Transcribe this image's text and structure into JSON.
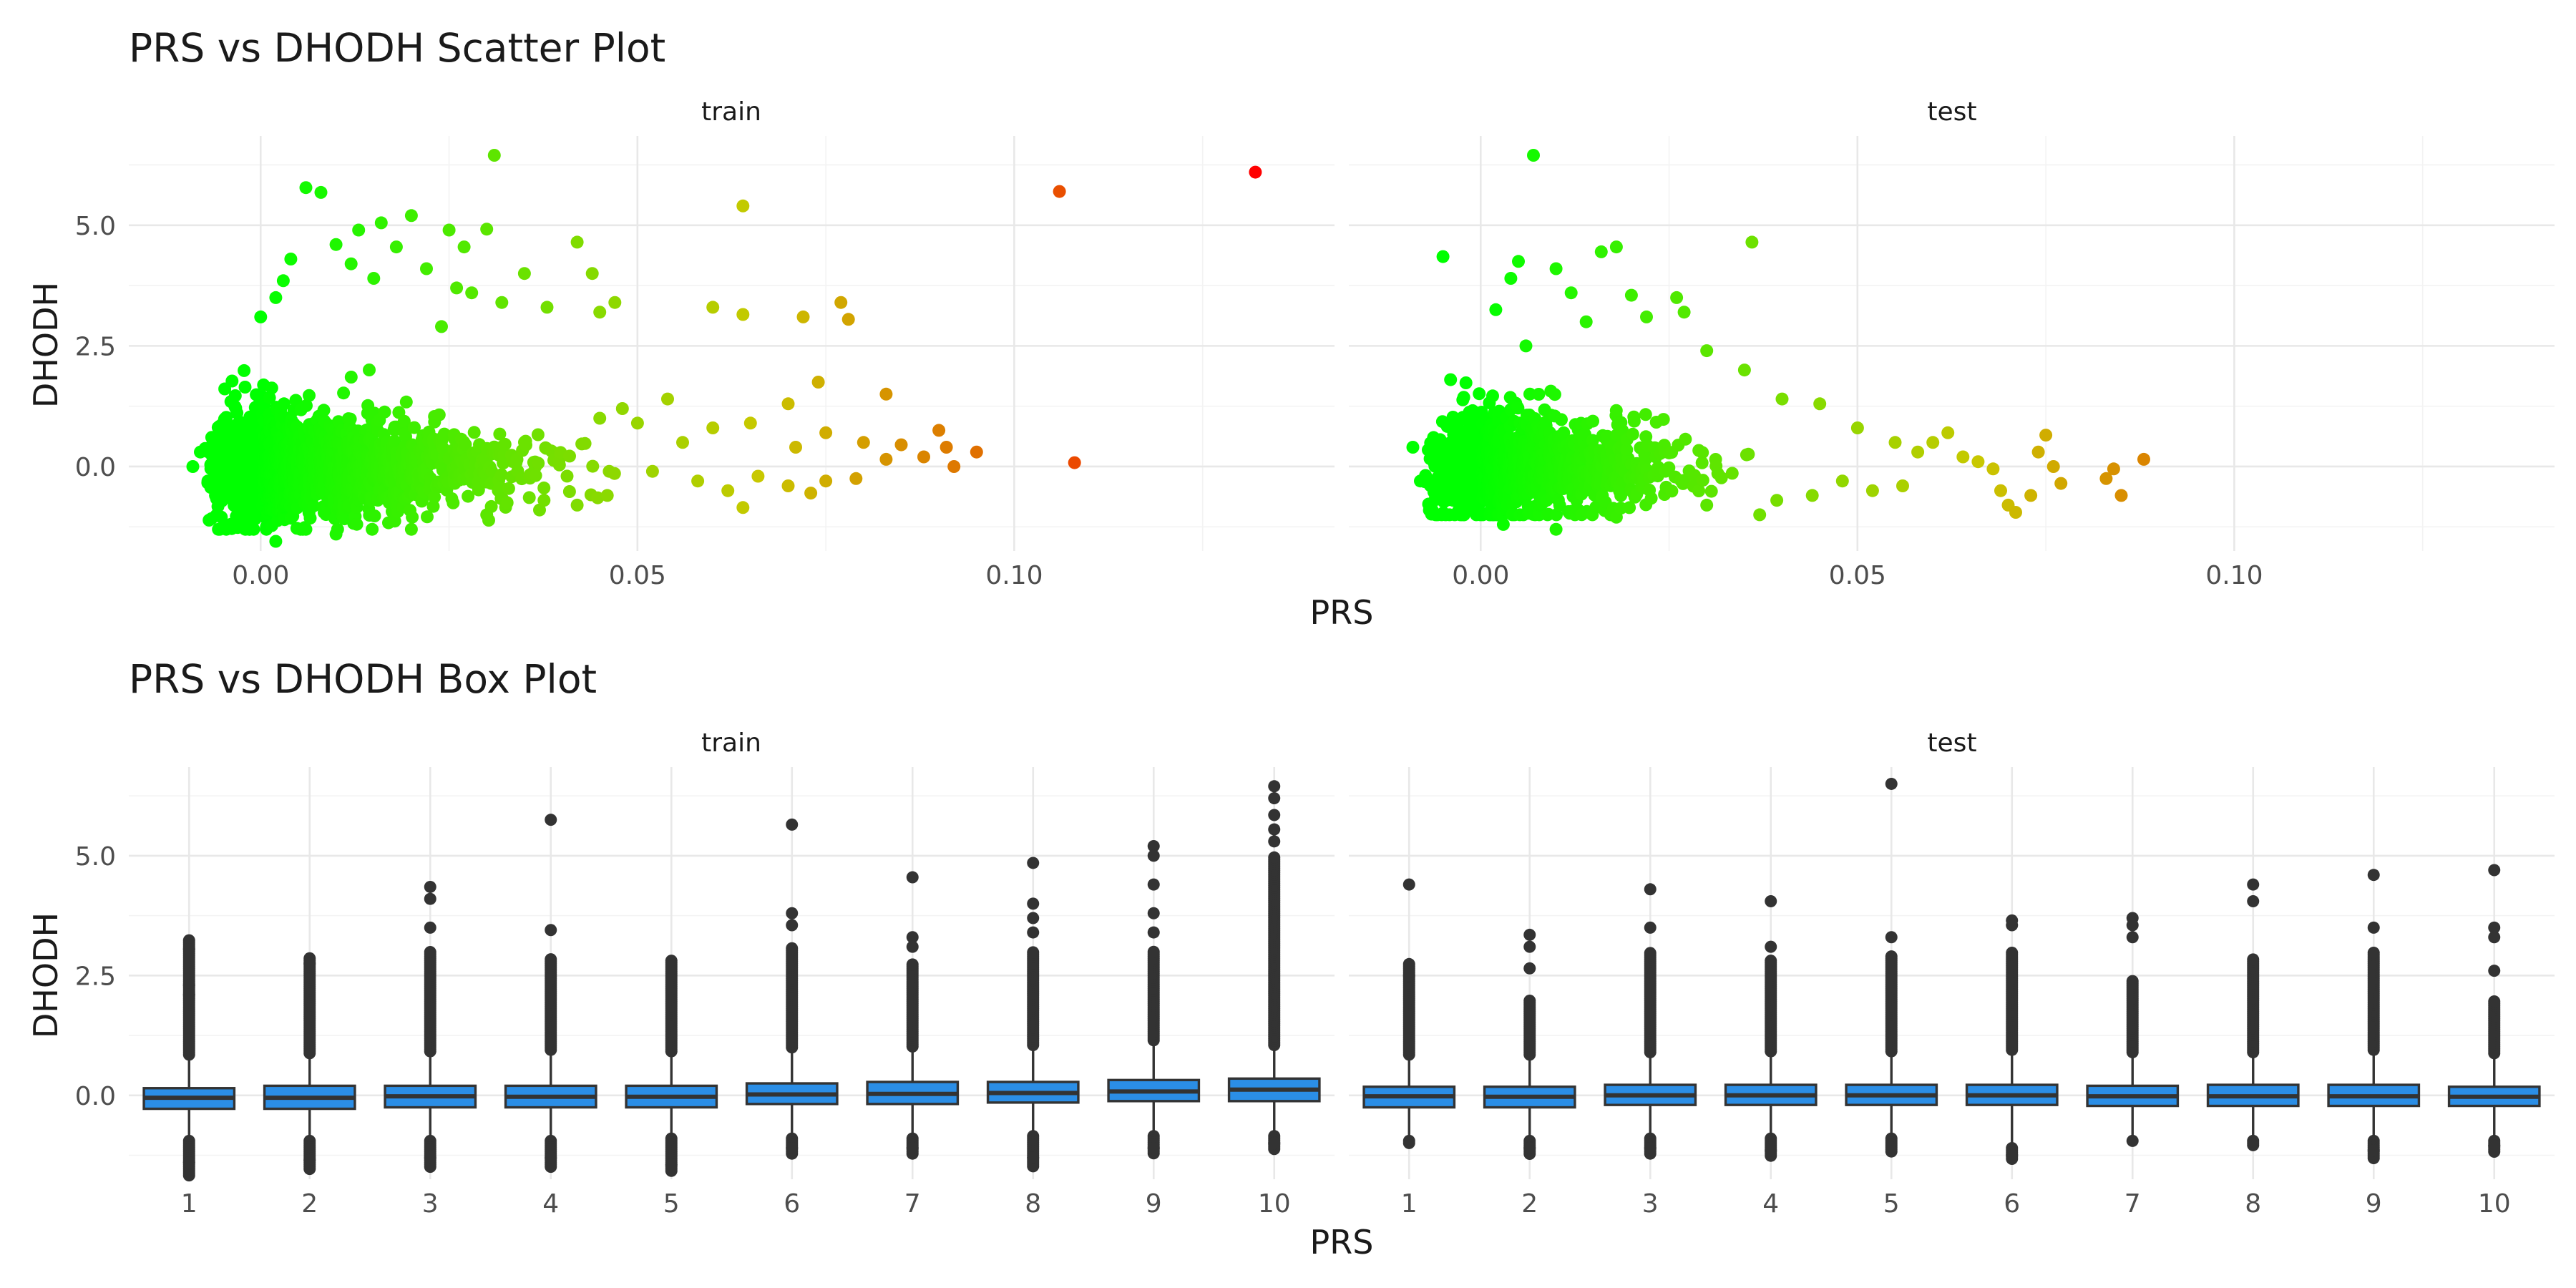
{
  "chart_data": [
    {
      "type": "scatter",
      "title": "PRS vs DHODH Scatter Plot",
      "xlabel": "PRS",
      "ylabel": "DHODH",
      "facets": [
        "train",
        "test"
      ],
      "xlim": [
        -0.0175,
        0.1425
      ],
      "ylim": [
        -1.75,
        6.85
      ],
      "x_ticks": [
        0.0,
        0.05,
        0.1
      ],
      "x_tick_labels": [
        "0.00",
        "0.05",
        "0.10"
      ],
      "y_ticks": [
        0.0,
        2.5,
        5.0
      ],
      "y_tick_labels": [
        "0.0",
        "2.5",
        "5.0"
      ],
      "color_scale": {
        "low": "#00ff00",
        "mid": "#c8c800",
        "high": "#ff0000",
        "domain": [
          0.0,
          0.132
        ]
      },
      "grid": true,
      "series": [
        {
          "points": [
            [
              0.031,
              6.45
            ],
            [
              0.006,
              5.78
            ],
            [
              0.008,
              5.68
            ],
            [
              0.02,
              5.2
            ],
            [
              0.016,
              5.05
            ],
            [
              0.013,
              4.9
            ],
            [
              0.025,
              4.9
            ],
            [
              0.03,
              4.92
            ],
            [
              0.042,
              4.65
            ],
            [
              0.01,
              4.6
            ],
            [
              0.018,
              4.55
            ],
            [
              0.027,
              4.55
            ],
            [
              0.004,
              4.3
            ],
            [
              0.012,
              4.2
            ],
            [
              0.022,
              4.1
            ],
            [
              0.035,
              4.0
            ],
            [
              0.044,
              4.0
            ],
            [
              0.003,
              3.85
            ],
            [
              0.015,
              3.9
            ],
            [
              0.028,
              3.6
            ],
            [
              0.032,
              3.4
            ],
            [
              0.038,
              3.3
            ],
            [
              0.045,
              3.2
            ],
            [
              0.047,
              3.4
            ],
            [
              0.064,
              5.4
            ],
            [
              0.106,
              5.7
            ],
            [
              0.132,
              6.1
            ],
            [
              0.06,
              3.3
            ],
            [
              0.064,
              3.15
            ],
            [
              0.072,
              3.1
            ],
            [
              0.077,
              3.4
            ],
            [
              0.078,
              3.05
            ],
            [
              0.074,
              1.75
            ],
            [
              0.083,
              1.5
            ],
            [
              0.07,
              1.3
            ],
            [
              0.054,
              1.4
            ],
            [
              0.048,
              1.2
            ],
            [
              0.045,
              1.0
            ],
            [
              0.05,
              0.9
            ],
            [
              0.056,
              0.5
            ],
            [
              0.06,
              0.8
            ],
            [
              0.065,
              0.9
            ],
            [
              0.071,
              0.4
            ],
            [
              0.075,
              0.7
            ],
            [
              0.08,
              0.5
            ],
            [
              0.085,
              0.45
            ],
            [
              0.09,
              0.75
            ],
            [
              0.095,
              0.3
            ],
            [
              0.088,
              0.2
            ],
            [
              0.091,
              0.4
            ],
            [
              0.092,
              0.0
            ],
            [
              0.108,
              0.08
            ],
            [
              0.052,
              -0.1
            ],
            [
              0.058,
              -0.3
            ],
            [
              0.062,
              -0.5
            ],
            [
              0.066,
              -0.2
            ],
            [
              0.07,
              -0.4
            ],
            [
              0.075,
              -0.3
            ],
            [
              0.079,
              -0.25
            ],
            [
              0.083,
              0.15
            ],
            [
              0.073,
              -0.55
            ],
            [
              0.064,
              -0.85
            ],
            [
              0.046,
              -0.6
            ],
            [
              0.042,
              -0.8
            ],
            [
              0.037,
              -0.9
            ],
            [
              0.03,
              -1.0
            ],
            [
              0.02,
              -1.3
            ],
            [
              0.01,
              -1.4
            ],
            [
              0.002,
              -1.55
            ],
            [
              0.006,
              -1.3
            ],
            [
              -0.004,
              -1.2
            ],
            [
              -0.006,
              -0.6
            ],
            [
              -0.009,
              0.0
            ],
            [
              -0.008,
              0.3
            ],
            [
              -0.007,
              -0.3
            ],
            [
              0.0,
              3.1
            ],
            [
              0.002,
              3.5
            ],
            [
              0.026,
              3.7
            ],
            [
              0.024,
              2.9
            ]
          ],
          "bulk_range": {
            "x": [
              -0.008,
              0.05
            ],
            "y": [
              -1.3,
              3.0
            ],
            "count": 1600
          }
        },
        {
          "points": [
            [
              0.007,
              6.45
            ],
            [
              0.036,
              4.65
            ],
            [
              -0.005,
              4.35
            ],
            [
              0.005,
              4.25
            ],
            [
              0.01,
              4.1
            ],
            [
              0.016,
              4.45
            ],
            [
              0.018,
              4.55
            ],
            [
              0.004,
              3.9
            ],
            [
              0.012,
              3.6
            ],
            [
              0.02,
              3.55
            ],
            [
              0.026,
              3.5
            ],
            [
              0.027,
              3.2
            ],
            [
              0.002,
              3.25
            ],
            [
              0.014,
              3.0
            ],
            [
              0.022,
              3.1
            ],
            [
              0.035,
              2.0
            ],
            [
              0.04,
              1.4
            ],
            [
              0.045,
              1.3
            ],
            [
              0.05,
              0.8
            ],
            [
              0.055,
              0.5
            ],
            [
              0.058,
              0.3
            ],
            [
              0.06,
              0.5
            ],
            [
              0.062,
              0.7
            ],
            [
              0.064,
              0.2
            ],
            [
              0.066,
              0.1
            ],
            [
              0.068,
              -0.05
            ],
            [
              0.069,
              -0.5
            ],
            [
              0.07,
              -0.8
            ],
            [
              0.071,
              -0.95
            ],
            [
              0.073,
              -0.6
            ],
            [
              0.074,
              0.3
            ],
            [
              0.075,
              0.65
            ],
            [
              0.076,
              0.0
            ],
            [
              0.077,
              -0.35
            ],
            [
              0.083,
              -0.25
            ],
            [
              0.084,
              -0.05
            ],
            [
              0.085,
              -0.6
            ],
            [
              0.088,
              0.15
            ],
            [
              0.048,
              -0.3
            ],
            [
              0.052,
              -0.5
            ],
            [
              0.056,
              -0.4
            ],
            [
              0.044,
              -0.6
            ],
            [
              0.03,
              -0.8
            ],
            [
              0.018,
              -1.05
            ],
            [
              0.01,
              -1.3
            ],
            [
              0.003,
              -1.2
            ],
            [
              -0.006,
              -0.6
            ],
            [
              -0.008,
              -0.3
            ],
            [
              -0.009,
              0.4
            ],
            [
              -0.004,
              1.8
            ],
            [
              0.006,
              2.5
            ],
            [
              0.03,
              2.4
            ]
          ],
          "bulk_range": {
            "x": [
              -0.008,
              0.04
            ],
            "y": [
              -1.0,
              2.2
            ],
            "count": 1100
          }
        }
      ]
    },
    {
      "type": "box",
      "title": "PRS vs DHODH Box Plot",
      "xlabel": "PRS",
      "ylabel": "DHODH",
      "facets": [
        "train",
        "test"
      ],
      "categories": [
        "1",
        "2",
        "3",
        "4",
        "5",
        "6",
        "7",
        "8",
        "9",
        "10"
      ],
      "ylim": [
        -1.75,
        6.85
      ],
      "y_ticks": [
        0.0,
        2.5,
        5.0
      ],
      "y_tick_labels": [
        "0.0",
        "2.5",
        "5.0"
      ],
      "box_color": "#2b8ee6",
      "grid": true,
      "series": [
        {
          "boxes": [
            {
              "q1": -0.28,
              "median": -0.05,
              "q3": 0.15,
              "lo": -0.85,
              "hi": 0.75,
              "high_out_max": 3.25,
              "high_out_sparse": [
                3.05,
                2.3,
                2.1
              ],
              "low_out_min": -1.68,
              "low_out_sparse": [
                -1.4
              ]
            },
            {
              "q1": -0.28,
              "median": -0.05,
              "q3": 0.2,
              "lo": -0.85,
              "hi": 0.78,
              "high_out_max": 2.9,
              "high_out_sparse": [
                2.75
              ],
              "low_out_min": -1.55,
              "low_out_sparse": [
                -1.35
              ]
            },
            {
              "q1": -0.25,
              "median": -0.02,
              "q3": 0.2,
              "lo": -0.85,
              "hi": 0.82,
              "high_out_max": 3.0,
              "high_out_sparse": [
                4.35,
                4.1,
                3.5
              ],
              "low_out_min": -1.5,
              "low_out_sparse": [
                -1.3
              ]
            },
            {
              "q1": -0.25,
              "median": -0.03,
              "q3": 0.2,
              "lo": -0.85,
              "hi": 0.85,
              "high_out_max": 2.85,
              "high_out_sparse": [
                5.75,
                3.45
              ],
              "low_out_min": -1.5,
              "low_out_sparse": [
                -1.3
              ]
            },
            {
              "q1": -0.25,
              "median": -0.03,
              "q3": 0.2,
              "lo": -0.8,
              "hi": 0.82,
              "high_out_max": 2.85,
              "high_out_sparse": [],
              "low_out_min": -1.6,
              "low_out_sparse": [
                -1.45
              ]
            },
            {
              "q1": -0.18,
              "median": 0.02,
              "q3": 0.25,
              "lo": -0.8,
              "hi": 0.9,
              "high_out_max": 3.1,
              "high_out_sparse": [
                5.65,
                3.8,
                3.55
              ],
              "low_out_min": -1.25,
              "low_out_sparse": [
                -1.1
              ]
            },
            {
              "q1": -0.18,
              "median": 0.03,
              "q3": 0.28,
              "lo": -0.8,
              "hi": 0.92,
              "high_out_max": 2.75,
              "high_out_sparse": [
                4.55,
                3.3,
                3.1
              ],
              "low_out_min": -1.25,
              "low_out_sparse": [
                -1.1
              ]
            },
            {
              "q1": -0.15,
              "median": 0.05,
              "q3": 0.28,
              "lo": -0.75,
              "hi": 0.95,
              "high_out_max": 3.0,
              "high_out_sparse": [
                4.85,
                4.0,
                3.7,
                3.4
              ],
              "low_out_min": -1.5,
              "low_out_sparse": [
                -1.3
              ]
            },
            {
              "q1": -0.12,
              "median": 0.08,
              "q3": 0.32,
              "lo": -0.75,
              "hi": 1.05,
              "high_out_max": 3.0,
              "high_out_sparse": [
                5.2,
                5.0,
                4.4,
                3.8,
                3.4
              ],
              "low_out_min": -1.25,
              "low_out_sparse": [
                -1.1
              ]
            },
            {
              "q1": -0.12,
              "median": 0.12,
              "q3": 0.35,
              "lo": -0.75,
              "hi": 0.95,
              "high_out_max": 5.0,
              "high_out_sparse": [
                6.45,
                6.2,
                5.85,
                5.55,
                5.3
              ],
              "low_out_min": -1.15,
              "low_out_sparse": [
                -1.0
              ]
            }
          ]
        },
        {
          "boxes": [
            {
              "q1": -0.25,
              "median": -0.02,
              "q3": 0.18,
              "lo": -0.85,
              "hi": 0.75,
              "high_out_max": 2.75,
              "high_out_sparse": [
                4.4,
                2.5
              ],
              "low_out_min": -1.0,
              "low_out_sparse": []
            },
            {
              "q1": -0.25,
              "median": -0.03,
              "q3": 0.18,
              "lo": -0.85,
              "hi": 0.75,
              "high_out_max": 2.0,
              "high_out_sparse": [
                3.35,
                3.1,
                2.65
              ],
              "low_out_min": -1.25,
              "low_out_sparse": [
                -1.1
              ]
            },
            {
              "q1": -0.2,
              "median": 0.0,
              "q3": 0.22,
              "lo": -0.8,
              "hi": 0.8,
              "high_out_max": 3.0,
              "high_out_sparse": [
                4.3,
                3.5
              ],
              "low_out_min": -1.25,
              "low_out_sparse": [
                -1.1
              ]
            },
            {
              "q1": -0.2,
              "median": 0.0,
              "q3": 0.22,
              "lo": -0.8,
              "hi": 0.82,
              "high_out_max": 2.85,
              "high_out_sparse": [
                4.05,
                3.1
              ],
              "low_out_min": -1.3,
              "low_out_sparse": [
                -1.15
              ]
            },
            {
              "q1": -0.2,
              "median": 0.0,
              "q3": 0.22,
              "lo": -0.8,
              "hi": 0.82,
              "high_out_max": 2.9,
              "high_out_sparse": [
                6.5,
                3.3
              ],
              "low_out_min": -1.2,
              "low_out_sparse": []
            },
            {
              "q1": -0.2,
              "median": 0.0,
              "q3": 0.22,
              "lo": -1.0,
              "hi": 0.85,
              "high_out_max": 3.0,
              "high_out_sparse": [
                3.65,
                3.55
              ],
              "low_out_min": -1.35,
              "low_out_sparse": [
                -1.25
              ]
            },
            {
              "q1": -0.22,
              "median": -0.02,
              "q3": 0.2,
              "lo": -0.85,
              "hi": 0.8,
              "high_out_max": 2.4,
              "high_out_sparse": [
                3.7,
                3.55,
                3.3
              ],
              "low_out_min": -0.95,
              "low_out_sparse": []
            },
            {
              "q1": -0.22,
              "median": -0.02,
              "q3": 0.22,
              "lo": -0.85,
              "hi": 0.8,
              "high_out_max": 2.85,
              "high_out_sparse": [
                4.4,
                4.05
              ],
              "low_out_min": -1.05,
              "low_out_sparse": []
            },
            {
              "q1": -0.22,
              "median": -0.02,
              "q3": 0.22,
              "lo": -0.85,
              "hi": 0.85,
              "high_out_max": 3.0,
              "high_out_sparse": [
                4.6,
                3.5
              ],
              "low_out_min": -1.35,
              "low_out_sparse": [
                -1.15
              ]
            },
            {
              "q1": -0.22,
              "median": -0.03,
              "q3": 0.18,
              "lo": -0.85,
              "hi": 0.78,
              "high_out_max": 2.0,
              "high_out_sparse": [
                4.7,
                3.5,
                3.3,
                2.6
              ],
              "low_out_min": -1.2,
              "low_out_sparse": [
                -1.05
              ]
            }
          ]
        }
      ]
    }
  ]
}
